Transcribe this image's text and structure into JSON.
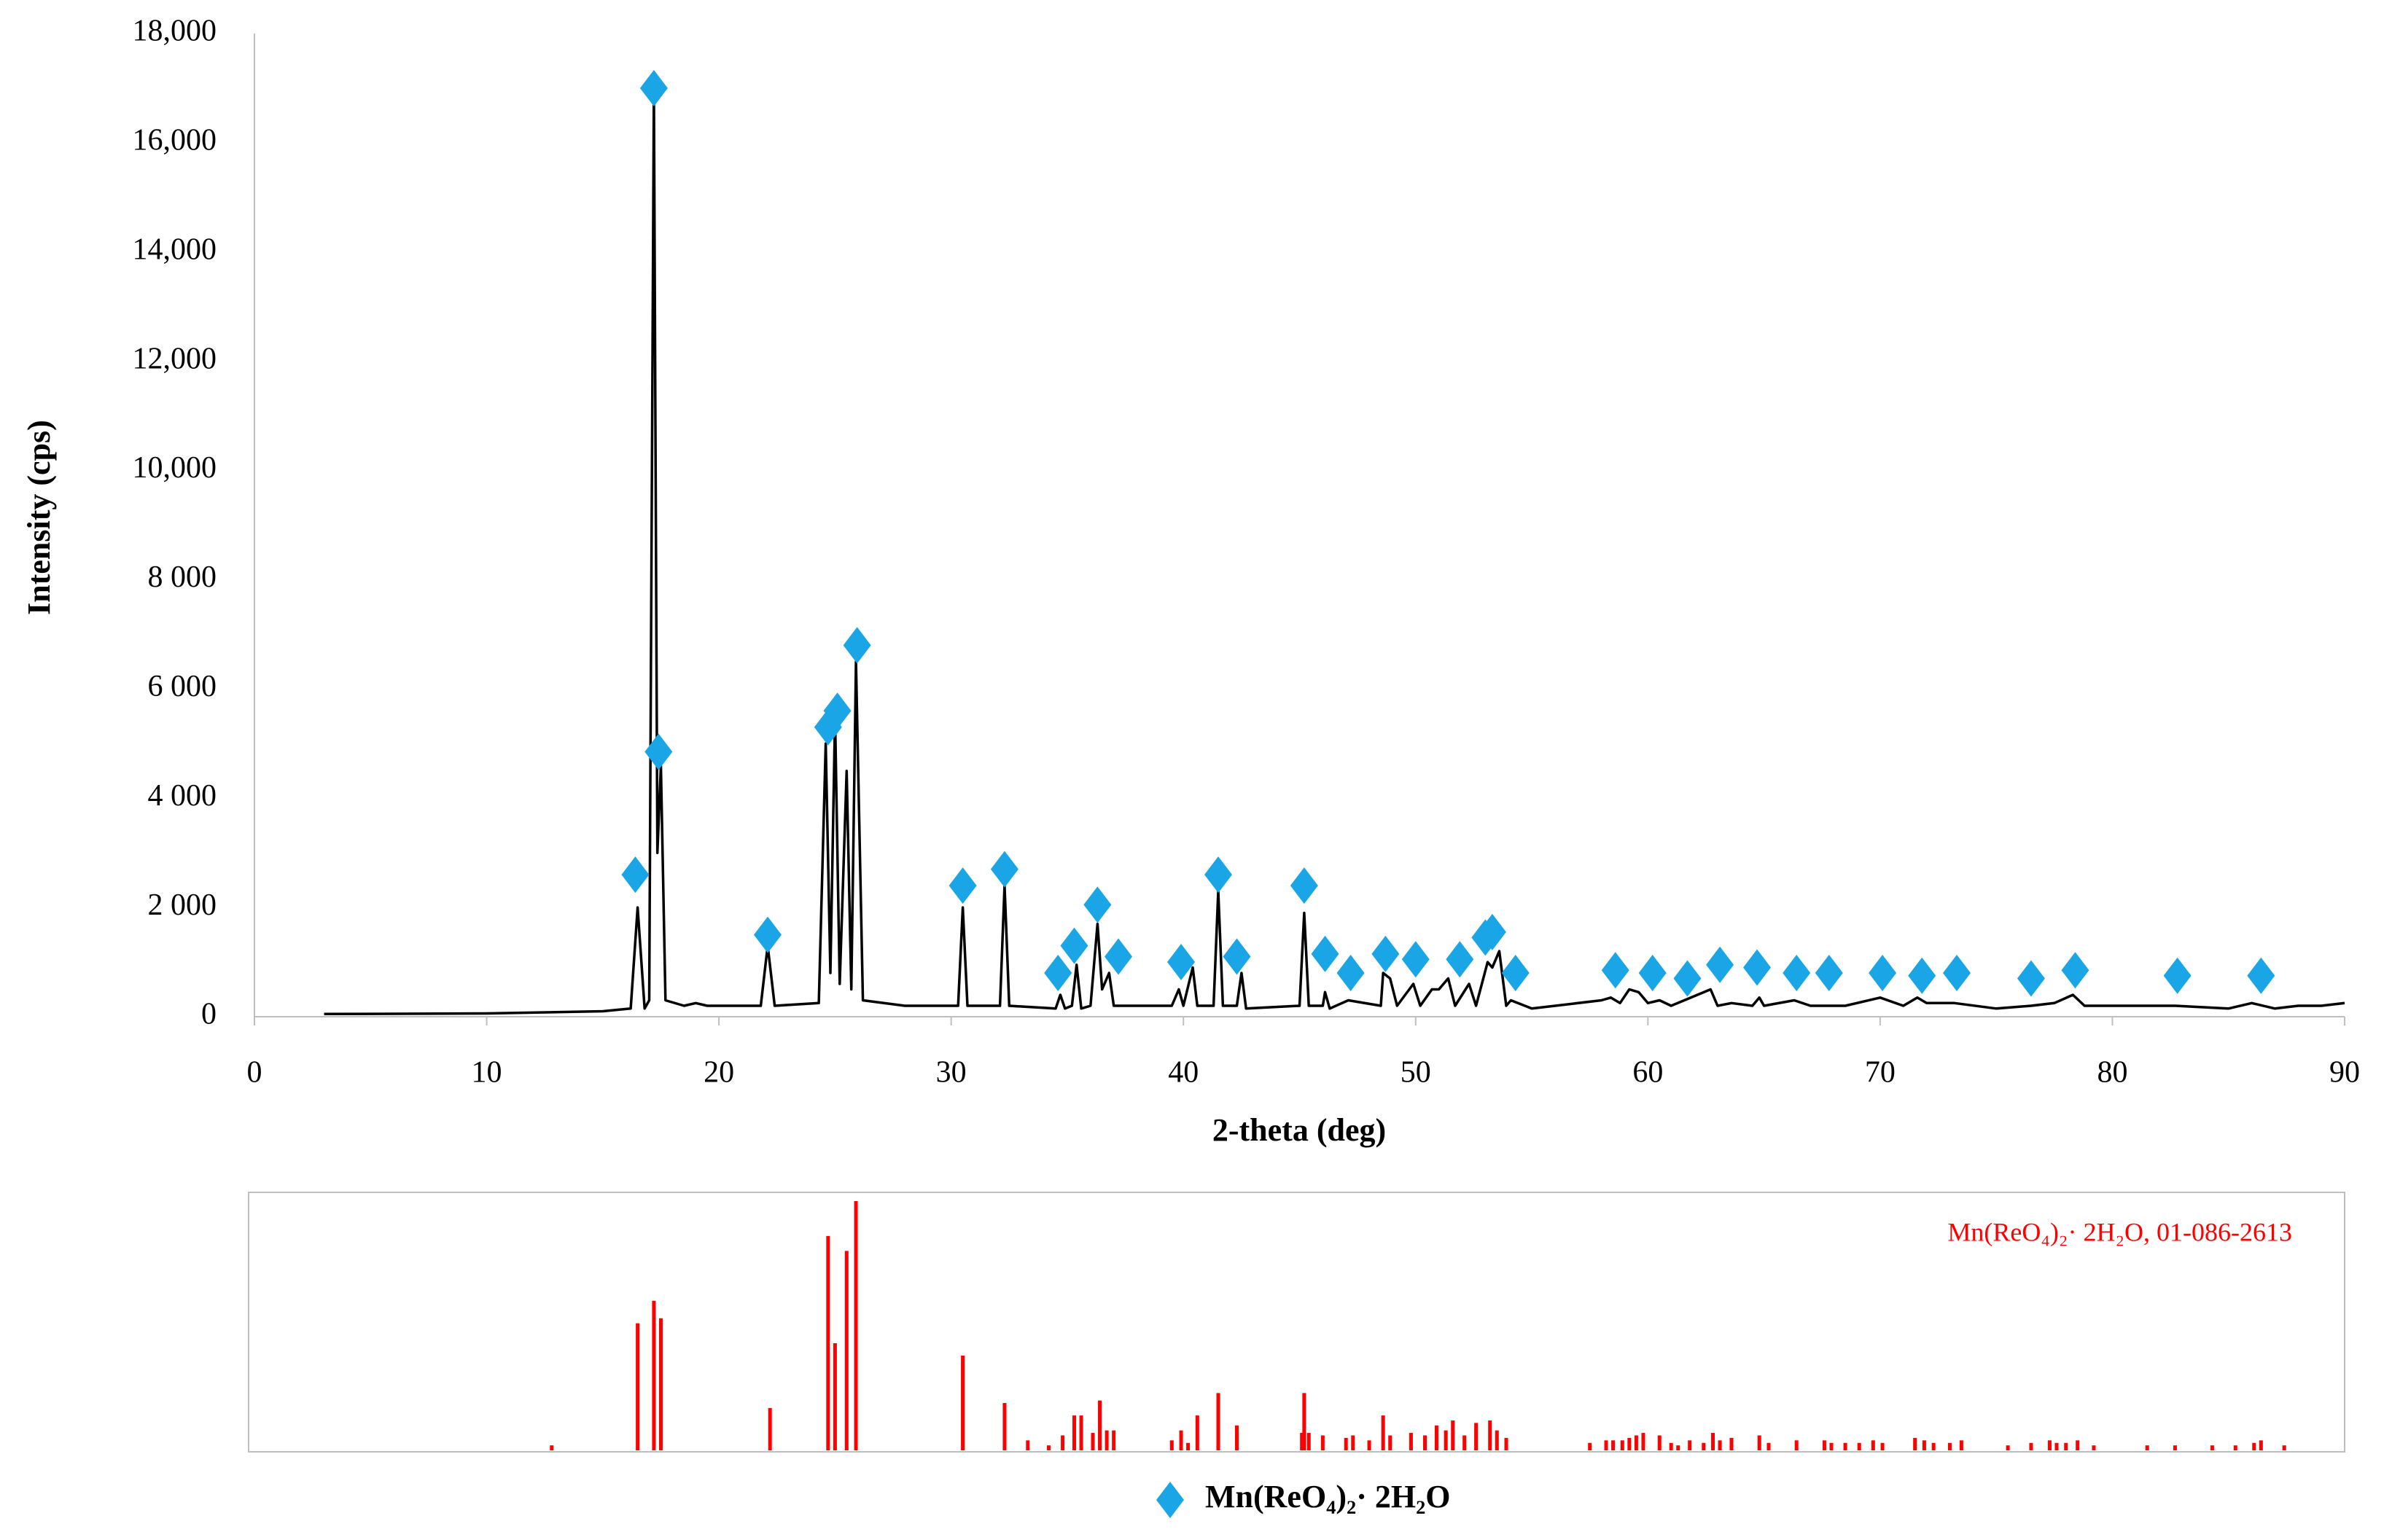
{
  "chart_data": [
    {
      "type": "line",
      "xlabel": "2-theta (deg)",
      "ylabel": "Intensity (cps)",
      "xlim": [
        0,
        90
      ],
      "xticks": [
        0,
        10,
        20,
        30,
        40,
        50,
        60,
        70,
        80,
        90
      ],
      "ylim": [
        0,
        18000
      ],
      "yticks": [
        0,
        {
          "value": 2000,
          "label": "2 000"
        },
        {
          "value": 4000,
          "label": "4 000"
        },
        {
          "value": 6000,
          "label": "6 000"
        },
        {
          "value": 8000,
          "label": "8 000"
        },
        {
          "value": 10000,
          "label": "10,000"
        },
        {
          "value": 12000,
          "label": "12,000"
        },
        {
          "value": 14000,
          "label": "14,000"
        },
        {
          "value": 16000,
          "label": "16,000"
        },
        {
          "value": 18000,
          "label": "18,000"
        }
      ],
      "grid": false,
      "legend": "bottom",
      "series": [
        {
          "type": "line",
          "color": "#000000",
          "x": [
            3,
            10,
            15,
            16.2,
            16.5,
            16.8,
            17.0,
            17.2,
            17.35,
            17.5,
            17.7,
            18.5,
            19,
            19.5,
            21.8,
            22.1,
            22.4,
            24.3,
            24.6,
            24.8,
            25.0,
            25.2,
            25.5,
            25.7,
            25.9,
            26.2,
            28,
            30.3,
            30.5,
            30.7,
            32.1,
            32.3,
            32.5,
            34.5,
            34.7,
            34.9,
            35.2,
            35.4,
            35.6,
            36.0,
            36.3,
            36.5,
            36.8,
            37.0,
            39.5,
            39.8,
            40.0,
            40.4,
            40.6,
            41.3,
            41.5,
            41.7,
            42.3,
            42.5,
            42.7,
            45,
            45.2,
            45.4,
            46,
            46.1,
            46.3,
            47.1,
            48.5,
            48.6,
            48.9,
            49.2,
            49.9,
            50.2,
            50.7,
            51,
            51.4,
            51.7,
            52.3,
            52.6,
            53.1,
            53.3,
            53.6,
            53.9,
            54.1,
            55,
            58,
            58.4,
            58.8,
            59.2,
            59.6,
            60,
            60.5,
            61,
            62.7,
            63,
            63.6,
            64.5,
            64.8,
            65,
            66.3,
            67,
            68.5,
            70,
            71,
            71.6,
            72,
            73.2,
            75,
            76.5,
            77.5,
            78.3,
            78.8,
            82.7,
            85,
            86,
            87,
            88,
            89,
            90
          ],
          "values": [
            50,
            60,
            100,
            150,
            2000,
            150,
            300,
            17000,
            3000,
            4600,
            300,
            200,
            250,
            200,
            200,
            1300,
            200,
            250,
            5000,
            800,
            5500,
            600,
            4500,
            500,
            6500,
            300,
            200,
            200,
            2000,
            200,
            200,
            2400,
            200,
            150,
            400,
            150,
            200,
            950,
            150,
            200,
            1700,
            500,
            800,
            200,
            200,
            500,
            200,
            900,
            200,
            200,
            2300,
            200,
            200,
            800,
            150,
            200,
            1900,
            200,
            200,
            450,
            150,
            300,
            200,
            800,
            700,
            200,
            600,
            200,
            500,
            500,
            700,
            200,
            600,
            200,
            1000,
            900,
            1200,
            200,
            300,
            150,
            300,
            350,
            250,
            500,
            450,
            250,
            300,
            200,
            500,
            200,
            250,
            200,
            350,
            200,
            300,
            200,
            200,
            350,
            200,
            350,
            250,
            250,
            150,
            200,
            250,
            400,
            200,
            200,
            150,
            250,
            150,
            200,
            200,
            250
          ]
        },
        {
          "type": "scatter",
          "marker": "diamond",
          "name": "Mn(ReO₄)₂· 2H₂O",
          "color": "#1aa6e6",
          "x": [
            16.4,
            17.2,
            17.4,
            22.1,
            24.7,
            25.1,
            25.95,
            30.5,
            32.3,
            34.6,
            35.3,
            36.3,
            37.2,
            39.9,
            41.5,
            42.3,
            45.2,
            46.1,
            47.2,
            48.7,
            50,
            51.9,
            53,
            53.3,
            54.3,
            58.6,
            60.2,
            61.7,
            63.1,
            64.7,
            66.4,
            67.8,
            70.1,
            71.8,
            73.3,
            76.5,
            78.4,
            82.8,
            86.4
          ],
          "values": [
            2600,
            17000,
            4850,
            1500,
            5300,
            5600,
            6800,
            2400,
            2700,
            800,
            1300,
            2050,
            1100,
            1000,
            2600,
            1100,
            2400,
            1150,
            800,
            1150,
            1050,
            1050,
            1450,
            1550,
            800,
            850,
            800,
            700,
            950,
            900,
            800,
            800,
            800,
            750,
            800,
            700,
            850,
            750,
            750
          ]
        }
      ]
    },
    {
      "type": "stick",
      "label": "Mn(ReO₄)₂· 2H₂O, 01-086-2613",
      "color": "#ff0000",
      "x": [
        12.8,
        16.5,
        17.2,
        17.5,
        22.2,
        24.7,
        25.0,
        25.5,
        25.9,
        30.5,
        32.3,
        33.3,
        34.2,
        34.8,
        35.3,
        35.6,
        36.1,
        36.4,
        36.7,
        37.0,
        39.5,
        39.9,
        40.2,
        40.6,
        41.5,
        42.3,
        45.1,
        45.2,
        45.4,
        46.0,
        47.0,
        47.3,
        48.0,
        48.6,
        48.9,
        49.8,
        50.4,
        50.9,
        51.3,
        51.6,
        52.1,
        52.6,
        53.2,
        53.5,
        53.9,
        57.5,
        58.2,
        58.5,
        58.9,
        59.2,
        59.5,
        59.8,
        60.5,
        61.0,
        61.3,
        61.8,
        62.4,
        62.8,
        63.1,
        63.6,
        64.8,
        65.2,
        66.4,
        67.6,
        67.9,
        68.5,
        69.1,
        69.7,
        70.1,
        71.5,
        71.9,
        72.3,
        73.0,
        73.5,
        75.5,
        76.5,
        77.3,
        77.6,
        78.0,
        78.5,
        79.2,
        81.5,
        82.7,
        84.3,
        85.3,
        86.1,
        86.4,
        87.4
      ],
      "values": [
        2,
        51,
        60,
        53,
        17,
        86,
        43,
        80,
        100,
        38,
        19,
        4,
        2,
        6,
        14,
        14,
        7,
        20,
        8,
        8,
        4,
        8,
        3,
        14,
        23,
        10,
        7,
        23,
        7,
        6,
        5,
        6,
        4,
        14,
        6,
        7,
        6,
        10,
        8,
        12,
        6,
        11,
        12,
        8,
        5,
        3,
        4,
        4,
        4,
        5,
        6,
        7,
        6,
        3,
        2,
        4,
        3,
        7,
        4,
        5,
        6,
        3,
        4,
        4,
        3,
        3,
        3,
        4,
        3,
        5,
        4,
        3,
        3,
        4,
        2,
        3,
        4,
        3,
        3,
        4,
        2,
        2,
        2,
        2,
        2,
        3,
        4,
        2
      ]
    }
  ]
}
